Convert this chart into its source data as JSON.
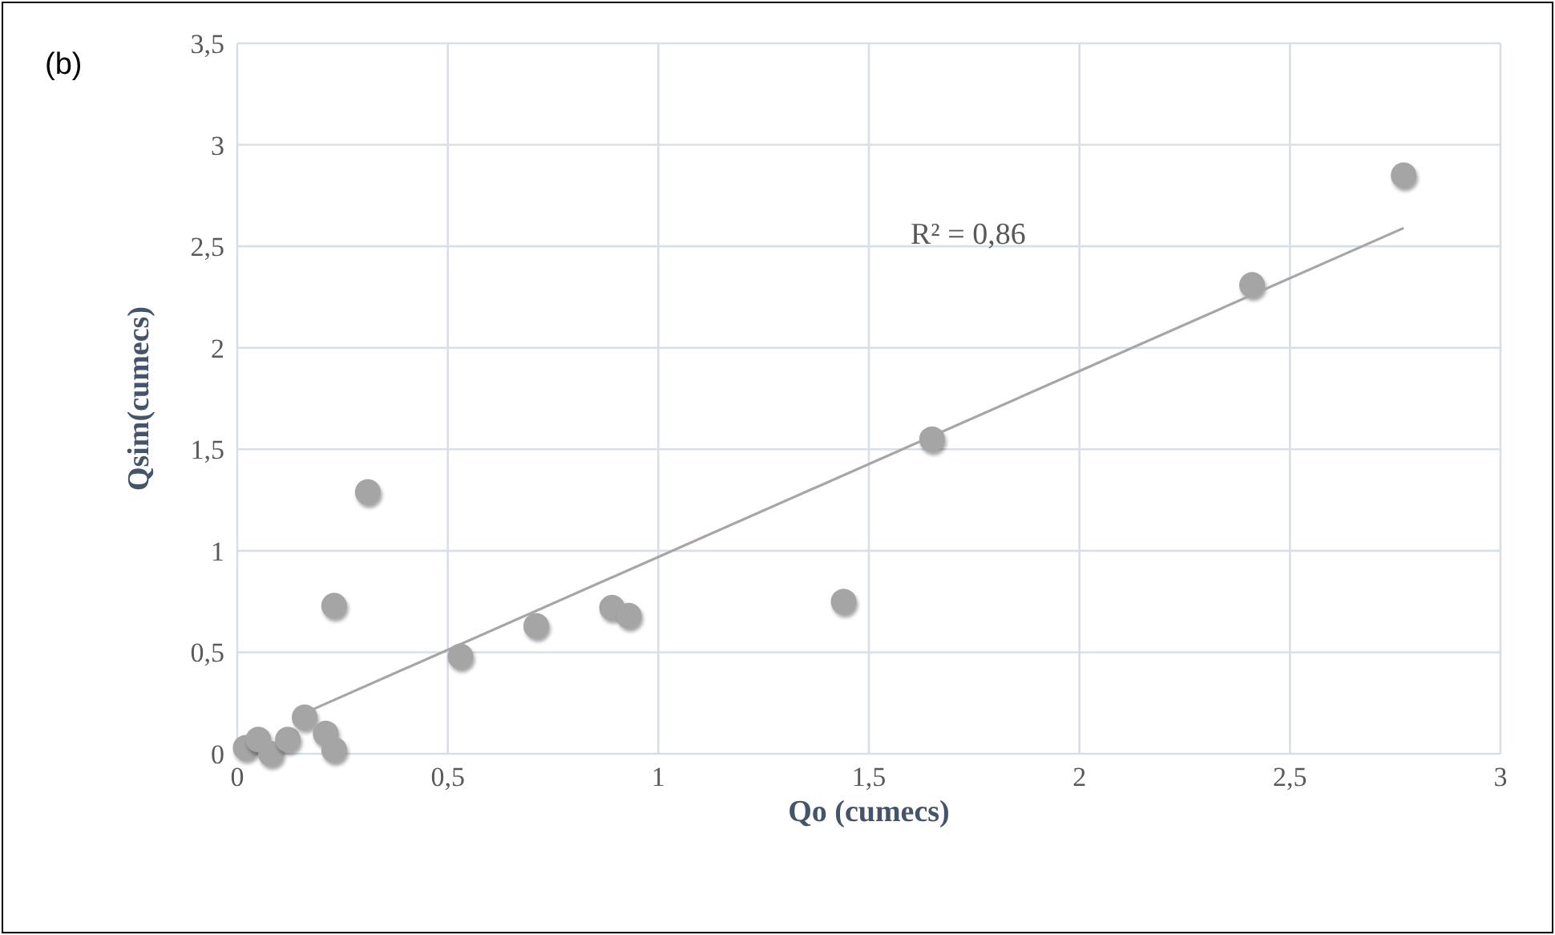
{
  "chart_data": {
    "type": "scatter",
    "xlabel": "Qo (cumecs)",
    "ylabel": "Qsim(cumecs)",
    "annotations": [
      "(b)",
      "R² = 0,86"
    ],
    "xlim": [
      0,
      3
    ],
    "xticks": [
      0,
      {
        "value": 0.5,
        "label": "0,5"
      },
      1,
      {
        "value": 1.5,
        "label": "1,5"
      },
      2,
      {
        "value": 2.5,
        "label": "2,5"
      },
      3
    ],
    "ylim": [
      0,
      3.5
    ],
    "yticks": [
      0,
      {
        "value": 0.5,
        "label": "0,5"
      },
      1,
      {
        "value": 1.5,
        "label": "1,5"
      },
      2,
      {
        "value": 2.5,
        "label": "2,5"
      },
      3,
      {
        "value": 3.5,
        "label": "3,5"
      }
    ],
    "grid": true,
    "marker": "circle",
    "series": [
      {
        "color": "#a5a5a5",
        "x": [
          0.02,
          0.05,
          0.08,
          0.12,
          0.16,
          0.21,
          0.23,
          0.23,
          0.31,
          0.53,
          0.71,
          0.89,
          0.93,
          1.44,
          1.65,
          2.41,
          2.77
        ],
        "values": [
          0.03,
          0.07,
          0.0,
          0.07,
          0.18,
          0.1,
          0.02,
          0.73,
          1.29,
          0.48,
          0.63,
          0.72,
          0.68,
          0.75,
          1.55,
          2.31,
          2.85
        ]
      },
      {
        "type": "line",
        "color": "#a6a6a6",
        "x": [
          0.17,
          2.77
        ],
        "values": [
          0.21,
          2.59
        ],
        "marker": "none"
      }
    ]
  }
}
